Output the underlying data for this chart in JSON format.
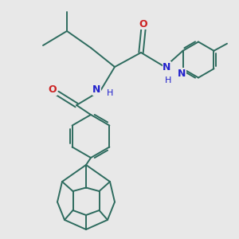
{
  "bg_color": "#e8e8e8",
  "bond_color": "#2d6b5e",
  "N_color": "#2222cc",
  "O_color": "#cc2222",
  "bond_width": 1.4,
  "fig_width": 3.0,
  "fig_height": 3.0,
  "dpi": 100,
  "xlim": [
    0,
    10
  ],
  "ylim": [
    0,
    10
  ]
}
